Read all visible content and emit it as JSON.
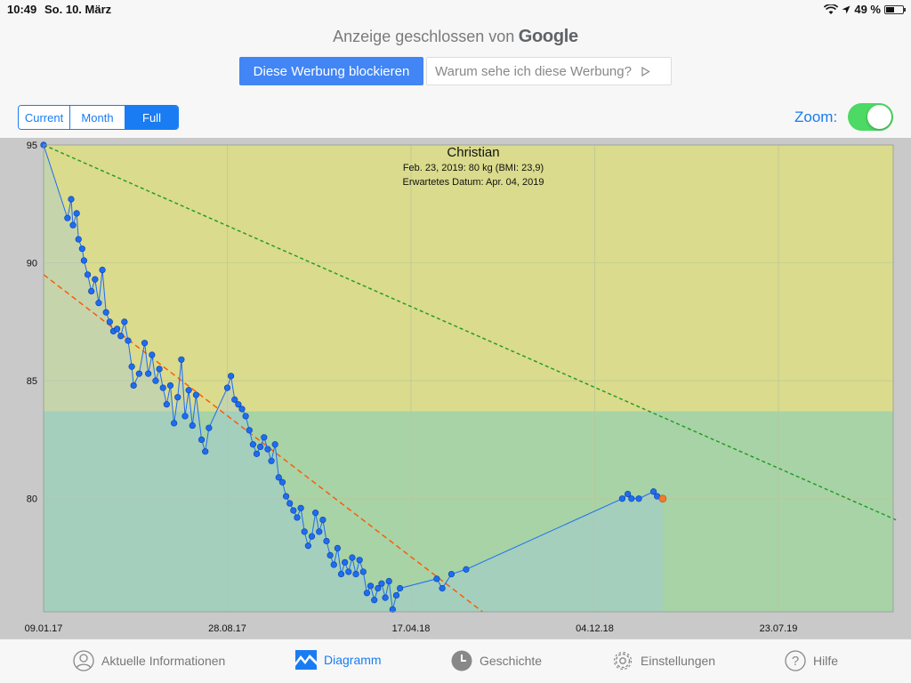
{
  "status": {
    "time": "10:49",
    "date": "So. 10. März",
    "battery": "49 %",
    "battery_level": 0.49
  },
  "ad": {
    "closed_text": "Anzeige geschlossen von",
    "brand": "Google",
    "block_button": "Diese Werbung blockieren",
    "why_button": "Warum sehe ich diese Werbung?"
  },
  "segments": {
    "current": "Current",
    "month": "Month",
    "full": "Full",
    "selected": "Full"
  },
  "zoom": {
    "label": "Zoom:",
    "on": true
  },
  "tabs": {
    "info": "Aktuelle Informationen",
    "diagram": "Diagramm",
    "history": "Geschichte",
    "settings": "Einstellungen",
    "help": "Hilfe",
    "active": "Diagramm"
  },
  "colors": {
    "accent": "#1a7cf2",
    "upper_zone": "#dadb8c",
    "lower_zone": "#a7d3a6",
    "series": "#1e6cf2",
    "latest_point": "#f07a2e",
    "trend_fast": "#ff5500",
    "trend_slow": "#1e9a1e"
  },
  "chart_data": {
    "type": "line",
    "title": "Christian",
    "subtitle_lines": [
      "Feb. 23, 2019: 80 kg (BMI: 23,9)",
      "Erwartetes Datum: Apr. 04, 2019"
    ],
    "x_ticks": [
      "09.01.17",
      "28.08.17",
      "17.04.18",
      "04.12.18",
      "23.07.19"
    ],
    "y_ticks": [
      80,
      85,
      90,
      95
    ],
    "ylim": [
      75.2,
      95
    ],
    "zone_boundary": 83.7,
    "trend_lines": [
      {
        "style": "dashed",
        "color_key": "trend_slow",
        "from": [
          0,
          95
        ],
        "to": [
          4.64,
          79.1
        ]
      },
      {
        "style": "dashed",
        "color_key": "trend_fast",
        "from": [
          0,
          89.5
        ],
        "to": [
          2.39,
          75.2
        ]
      }
    ],
    "series": [
      {
        "values": [
          [
            0.0,
            95.0
          ],
          [
            0.13,
            91.9
          ],
          [
            0.15,
            92.7
          ],
          [
            0.16,
            91.6
          ],
          [
            0.18,
            92.1
          ],
          [
            0.19,
            91.0
          ],
          [
            0.21,
            90.6
          ],
          [
            0.22,
            90.1
          ],
          [
            0.24,
            89.5
          ],
          [
            0.26,
            88.8
          ],
          [
            0.28,
            89.3
          ],
          [
            0.3,
            88.3
          ],
          [
            0.32,
            89.7
          ],
          [
            0.34,
            87.9
          ],
          [
            0.36,
            87.5
          ],
          [
            0.38,
            87.1
          ],
          [
            0.4,
            87.2
          ],
          [
            0.42,
            86.9
          ],
          [
            0.44,
            87.5
          ],
          [
            0.46,
            86.7
          ],
          [
            0.48,
            85.6
          ],
          [
            0.49,
            84.8
          ],
          [
            0.52,
            85.3
          ],
          [
            0.55,
            86.6
          ],
          [
            0.57,
            85.3
          ],
          [
            0.59,
            86.1
          ],
          [
            0.61,
            85.0
          ],
          [
            0.63,
            85.5
          ],
          [
            0.65,
            84.7
          ],
          [
            0.67,
            84.0
          ],
          [
            0.69,
            84.8
          ],
          [
            0.71,
            83.2
          ],
          [
            0.73,
            84.3
          ],
          [
            0.75,
            85.9
          ],
          [
            0.77,
            83.5
          ],
          [
            0.79,
            84.6
          ],
          [
            0.81,
            83.1
          ],
          [
            0.83,
            84.4
          ],
          [
            0.86,
            82.5
          ],
          [
            0.88,
            82.0
          ],
          [
            0.9,
            83.0
          ],
          [
            1.0,
            84.7
          ],
          [
            1.02,
            85.2
          ],
          [
            1.04,
            84.2
          ],
          [
            1.06,
            84.0
          ],
          [
            1.08,
            83.8
          ],
          [
            1.1,
            83.5
          ],
          [
            1.12,
            82.9
          ],
          [
            1.14,
            82.3
          ],
          [
            1.16,
            81.9
          ],
          [
            1.18,
            82.2
          ],
          [
            1.2,
            82.6
          ],
          [
            1.22,
            82.1
          ],
          [
            1.24,
            81.6
          ],
          [
            1.26,
            82.3
          ],
          [
            1.28,
            80.9
          ],
          [
            1.3,
            80.7
          ],
          [
            1.32,
            80.1
          ],
          [
            1.34,
            79.8
          ],
          [
            1.36,
            79.5
          ],
          [
            1.38,
            79.2
          ],
          [
            1.4,
            79.6
          ],
          [
            1.42,
            78.6
          ],
          [
            1.44,
            78.0
          ],
          [
            1.46,
            78.4
          ],
          [
            1.48,
            79.4
          ],
          [
            1.5,
            78.6
          ],
          [
            1.52,
            79.1
          ],
          [
            1.54,
            78.2
          ],
          [
            1.56,
            77.6
          ],
          [
            1.58,
            77.2
          ],
          [
            1.6,
            77.9
          ],
          [
            1.62,
            76.8
          ],
          [
            1.64,
            77.3
          ],
          [
            1.66,
            76.9
          ],
          [
            1.68,
            77.5
          ],
          [
            1.7,
            76.8
          ],
          [
            1.72,
            77.4
          ],
          [
            1.74,
            76.9
          ],
          [
            1.76,
            76.0
          ],
          [
            1.78,
            76.3
          ],
          [
            1.8,
            75.7
          ],
          [
            1.82,
            76.2
          ],
          [
            1.84,
            76.4
          ],
          [
            1.86,
            75.8
          ],
          [
            1.88,
            76.5
          ],
          [
            1.9,
            75.3
          ],
          [
            1.92,
            75.9
          ],
          [
            1.94,
            76.2
          ],
          [
            2.14,
            76.6
          ],
          [
            2.17,
            76.2
          ],
          [
            2.22,
            76.8
          ],
          [
            2.3,
            77.0
          ],
          [
            3.15,
            80.0
          ],
          [
            3.18,
            80.2
          ],
          [
            3.2,
            80.0
          ],
          [
            3.24,
            80.0
          ],
          [
            3.32,
            80.3
          ],
          [
            3.34,
            80.1
          ]
        ]
      }
    ],
    "latest_point": [
      3.37,
      80.0
    ]
  }
}
